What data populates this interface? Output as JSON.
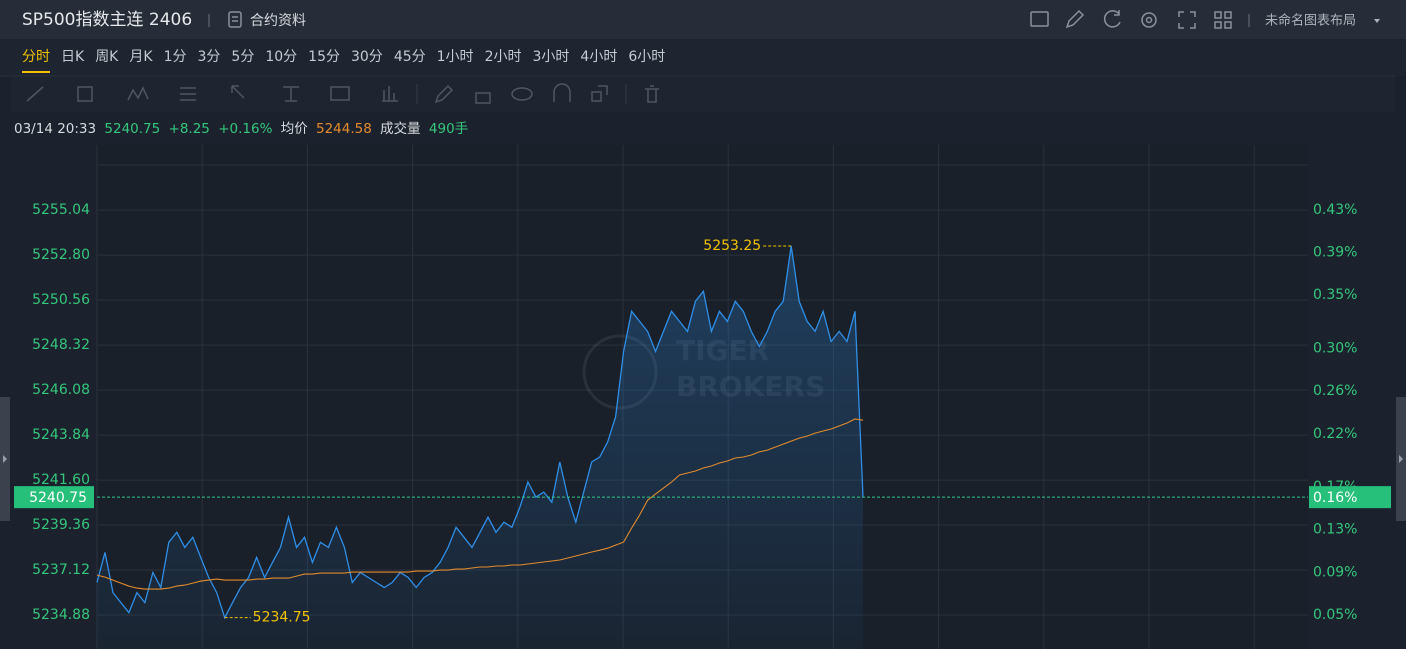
{
  "header": {
    "title": "SP500指数主连 2406",
    "contract": "合约资料",
    "layout": "未命名图表布局"
  },
  "timeframes": [
    "分时",
    "日K",
    "周K",
    "月K",
    "1分",
    "3分",
    "5分",
    "10分",
    "15分",
    "30分",
    "45分",
    "1小时",
    "2小时",
    "3小时",
    "4小时",
    "6小时"
  ],
  "info": {
    "datetime": "03/14 20:33",
    "price": "5240.75",
    "change": "+8.25",
    "change_pct": "+0.16%",
    "avg_label": "均价",
    "avg": "5244.58",
    "volume_label": "成交量",
    "volume": "490手"
  },
  "chart_data": {
    "type": "line",
    "watermark": [
      "TIGER",
      "BROKERS"
    ],
    "ylim": [
      5233.19,
      5258.28
    ],
    "yticks": [
      5255.04,
      {
        "value": 5252.8,
        "label": "5252.80"
      },
      5250.56,
      5248.32,
      5246.08,
      5243.84,
      {
        "value": 5241.6,
        "label": "5241.60"
      },
      5239.36,
      5237.12,
      5234.88
    ],
    "y2lim": [
      0.018,
      0.491
    ],
    "y2ticks": [
      {
        "value": 0.43,
        "label": "0.43%"
      },
      {
        "value": 0.39,
        "label": "0.39%"
      },
      {
        "value": 0.35,
        "label": "0.35%"
      },
      {
        "value": 0.3,
        "label": "0.30%"
      },
      {
        "value": 0.26,
        "label": "0.26%"
      },
      {
        "value": 0.22,
        "label": "0.22%"
      },
      {
        "value": 0.17,
        "label": "0.17%"
      },
      {
        "value": 0.13,
        "label": "0.13%"
      },
      {
        "value": 0.09,
        "label": "0.09%"
      },
      {
        "value": 0.05,
        "label": "0.05%"
      }
    ],
    "grid": true,
    "max_label": 5253.25,
    "min_label": 5234.75,
    "last_pct_label": "0.16%",
    "series": [
      {
        "color": "#2f8fe8",
        "values": [
          5236.5,
          5238.0,
          5236.0,
          5235.5,
          5235.0,
          5236.0,
          5235.5,
          5237.0,
          5236.25,
          5238.5,
          5239.0,
          5238.25,
          5238.75,
          5237.75,
          5236.75,
          5236.0,
          5234.75,
          5235.5,
          5236.25,
          5236.75,
          5237.75,
          5236.75,
          5237.5,
          5238.25,
          5239.75,
          5238.25,
          5238.75,
          5237.5,
          5238.5,
          5238.25,
          5239.25,
          5238.25,
          5236.5,
          5237.0,
          5236.75,
          5236.5,
          5236.25,
          5236.5,
          5237.0,
          5236.75,
          5236.25,
          5236.75,
          5237.0,
          5237.5,
          5238.25,
          5239.25,
          5238.75,
          5238.25,
          5239.0,
          5239.75,
          5239.0,
          5239.5,
          5239.25,
          5240.25,
          5241.5,
          5240.75,
          5241.0,
          5240.5,
          5242.5,
          5240.75,
          5239.5,
          5241.0,
          5242.5,
          5242.75,
          5243.5,
          5244.75,
          5248.0,
          5250.0,
          5249.5,
          5249.0,
          5248.0,
          5249.0,
          5250.0,
          5249.5,
          5249.0,
          5250.5,
          5251.0,
          5249.0,
          5250.0,
          5249.5,
          5250.5,
          5250.0,
          5249.0,
          5248.25,
          5249.0,
          5250.0,
          5250.5,
          5253.25,
          5250.5,
          5249.5,
          5249.0,
          5250.0,
          5248.5,
          5249.0,
          5248.5,
          5250.0,
          5240.75
        ]
      },
      {
        "color": "#e38b2c",
        "values": [
          5236.87,
          5236.77,
          5236.62,
          5236.47,
          5236.32,
          5236.22,
          5236.17,
          5236.17,
          5236.17,
          5236.22,
          5236.32,
          5236.37,
          5236.47,
          5236.57,
          5236.62,
          5236.67,
          5236.62,
          5236.62,
          5236.62,
          5236.62,
          5236.67,
          5236.67,
          5236.72,
          5236.72,
          5236.72,
          5236.82,
          5236.92,
          5236.92,
          5236.97,
          5236.97,
          5236.97,
          5236.97,
          5237.02,
          5237.02,
          5237.02,
          5237.02,
          5237.02,
          5237.02,
          5237.02,
          5237.02,
          5237.07,
          5237.07,
          5237.07,
          5237.12,
          5237.12,
          5237.17,
          5237.17,
          5237.22,
          5237.27,
          5237.27,
          5237.32,
          5237.32,
          5237.37,
          5237.37,
          5237.42,
          5237.47,
          5237.52,
          5237.57,
          5237.62,
          5237.72,
          5237.82,
          5237.92,
          5238.02,
          5238.11,
          5238.21,
          5238.36,
          5238.51,
          5239.21,
          5239.86,
          5240.6,
          5240.9,
          5241.2,
          5241.5,
          5241.85,
          5241.95,
          5242.05,
          5242.2,
          5242.3,
          5242.45,
          5242.55,
          5242.7,
          5242.75,
          5242.85,
          5243.0,
          5243.09,
          5243.24,
          5243.39,
          5243.54,
          5243.69,
          5243.79,
          5243.94,
          5244.04,
          5244.14,
          5244.29,
          5244.44,
          5244.64,
          5244.58
        ]
      }
    ]
  }
}
